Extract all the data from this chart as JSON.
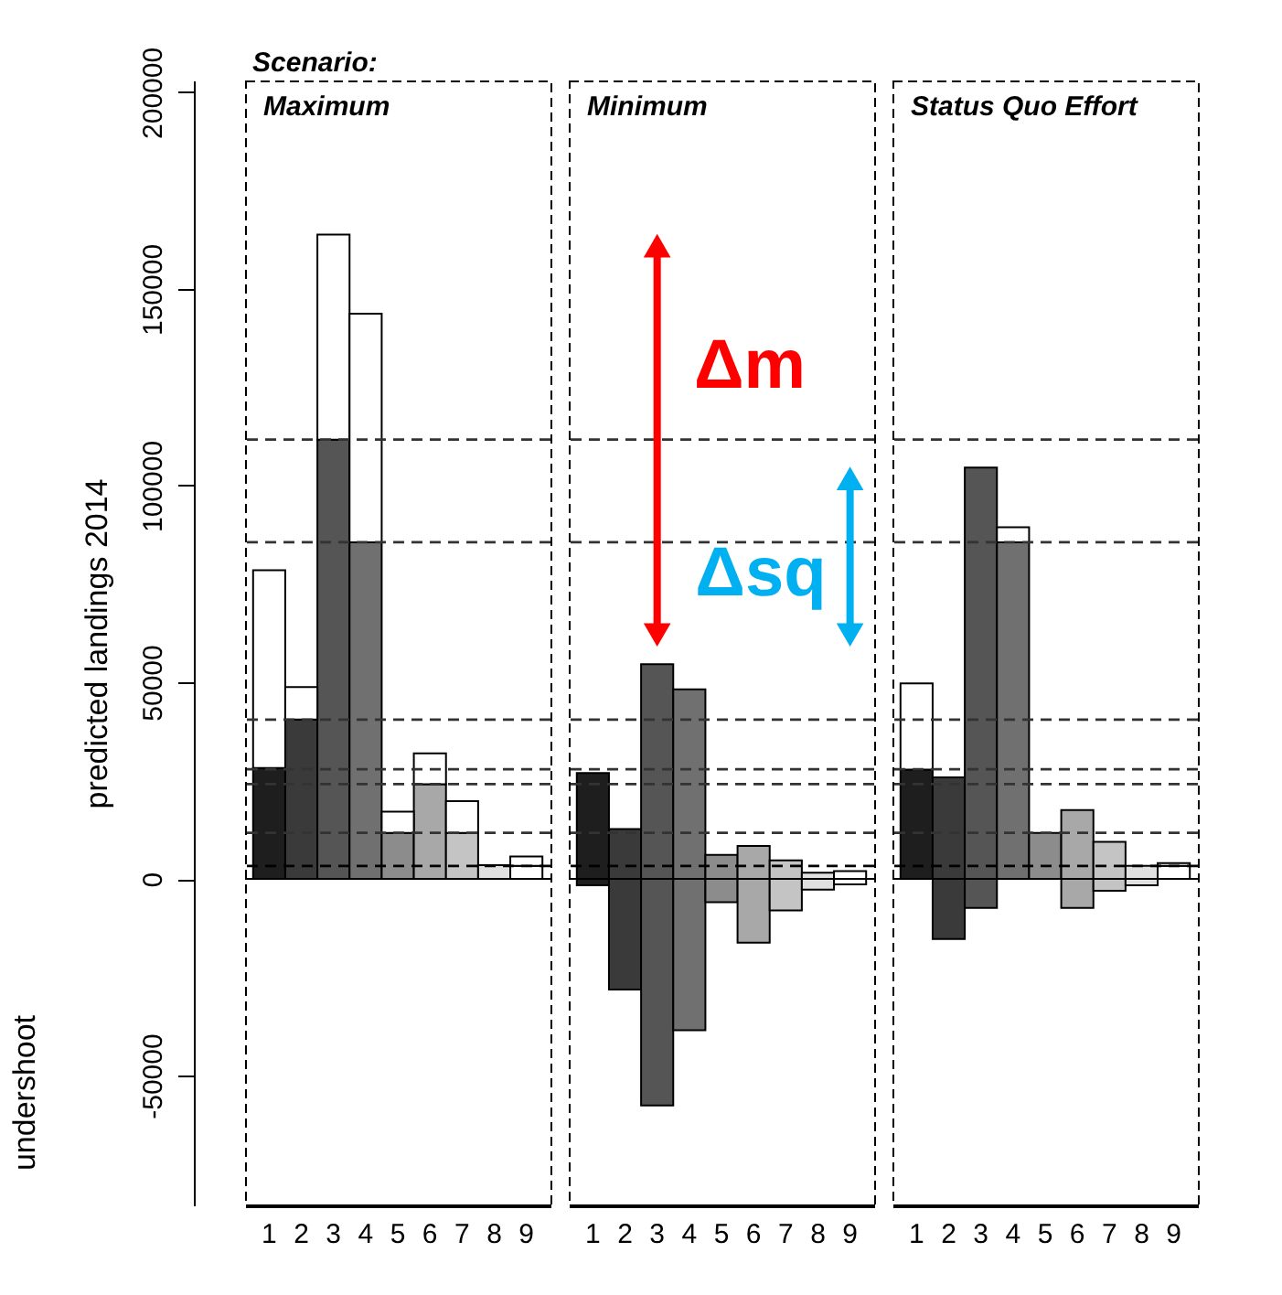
{
  "chart_data": [
    {
      "type": "bar",
      "title": "Maximum",
      "ylabel": "predicted landings 2014",
      "annotations": [
        "Scenario:",
        "undershoot"
      ],
      "categories": [
        "1",
        "2",
        "3",
        "4",
        "5",
        "6",
        "7",
        "8",
        "9"
      ],
      "ylim": [
        -83000,
        203000
      ],
      "yticks": [
        -50000,
        0,
        50000,
        100000,
        150000,
        200000
      ],
      "series": [
        {
          "colors": [
            "#1e1e1e",
            "#3a3a3a",
            "#555555",
            "#707070",
            "#8c8c8c",
            "#a8a8a8",
            "#c4c4c4",
            "#e0e0e0",
            "#ffffff"
          ],
          "base": [
            0,
            0,
            0,
            0,
            0,
            0,
            0,
            0,
            0
          ],
          "values": [
            28200,
            40500,
            111700,
            85600,
            11700,
            24100,
            11700,
            3500,
            3300
          ]
        },
        {
          "color": "#ffffff",
          "base": [
            28200,
            40500,
            111700,
            85600,
            11700,
            24100,
            11700,
            null,
            3300
          ],
          "values": [
            50300,
            8300,
            52100,
            58100,
            5400,
            7800,
            8100,
            null,
            2400
          ]
        }
      ],
      "ref_lines": [
        {
          "axis": "y",
          "value": 111700,
          "color": "#333333",
          "line_style": "dashed"
        },
        {
          "axis": "y",
          "value": 85600,
          "color": "#333333",
          "line_style": "dashed"
        },
        {
          "axis": "y",
          "value": 40500,
          "color": "#333333",
          "line_style": "dashed"
        },
        {
          "axis": "y",
          "value": 27900,
          "color": "#333333",
          "line_style": "dashed"
        },
        {
          "axis": "y",
          "value": 24100,
          "color": "#333333",
          "line_style": "dashed"
        },
        {
          "axis": "y",
          "value": 11700,
          "color": "#333333",
          "line_style": "dashed"
        },
        {
          "axis": "y",
          "value": 3300,
          "color": "#000000",
          "line_style": "dashed"
        },
        {
          "axis": "y",
          "value": 0,
          "color": "#000000",
          "line_style": "solid"
        }
      ]
    },
    {
      "type": "bar",
      "title": "Minimum",
      "tick_labels": "x",
      "annotations": [
        "Δm",
        "Δsq"
      ],
      "categories": [
        "1",
        "2",
        "3",
        "4",
        "5",
        "6",
        "7",
        "8",
        "9"
      ],
      "ylim": [
        -83000,
        203000
      ],
      "series": [
        {
          "colors": [
            "#1e1e1e",
            "#3a3a3a",
            "#555555",
            "#707070",
            "#8c8c8c",
            "#a8a8a8",
            "#c4c4c4",
            "#e0e0e0",
            "#ffffff"
          ],
          "base": [
            -1600,
            -28100,
            -57600,
            -38500,
            -5900,
            -16200,
            -8000,
            -2700,
            -1400
          ],
          "values": [
            28500,
            40800,
            112200,
            86700,
            12000,
            24600,
            12700,
            4300,
            3400
          ]
        }
      ],
      "ref_lines": [
        {
          "axis": "y",
          "value": 111700,
          "color": "#333333",
          "line_style": "dashed"
        },
        {
          "axis": "y",
          "value": 85600,
          "color": "#333333",
          "line_style": "dashed"
        },
        {
          "axis": "y",
          "value": 40500,
          "color": "#333333",
          "line_style": "dashed"
        },
        {
          "axis": "y",
          "value": 27900,
          "color": "#333333",
          "line_style": "dashed"
        },
        {
          "axis": "y",
          "value": 24100,
          "color": "#333333",
          "line_style": "dashed"
        },
        {
          "axis": "y",
          "value": 11700,
          "color": "#333333",
          "line_style": "dashed"
        },
        {
          "axis": "y",
          "value": 3300,
          "color": "#000000",
          "line_style": "dashed"
        },
        {
          "axis": "y",
          "value": 0,
          "color": "#000000",
          "line_style": "solid"
        }
      ]
    },
    {
      "type": "bar",
      "title": "Status Quo Effort",
      "tick_labels": "x",
      "categories": [
        "1",
        "2",
        "3",
        "4",
        "5",
        "6",
        "7",
        "8",
        "9"
      ],
      "ylim": [
        -83000,
        203000
      ],
      "series": [
        {
          "colors": [
            "#1e1e1e",
            "#3a3a3a",
            "#555555",
            "#707070",
            "#8c8c8c",
            "#a8a8a8",
            "#c4c4c4",
            "#e0e0e0",
            "#ffffff"
          ],
          "base": [
            0,
            -15300,
            -7400,
            0,
            0,
            -7400,
            -3000,
            -1600,
            0
          ],
          "values": [
            27800,
            41100,
            112000,
            85600,
            11700,
            24900,
            12400,
            4900,
            3300
          ]
        },
        {
          "color": "#ffffff",
          "base": [
            27800,
            null,
            null,
            85600,
            null,
            null,
            null,
            null,
            3300
          ],
          "values": [
            21900,
            null,
            null,
            3800,
            null,
            null,
            null,
            null,
            700
          ]
        }
      ],
      "ref_lines": [
        {
          "axis": "y",
          "value": 111700,
          "color": "#333333",
          "line_style": "dashed"
        },
        {
          "axis": "y",
          "value": 85600,
          "color": "#333333",
          "line_style": "dashed"
        },
        {
          "axis": "y",
          "value": 40500,
          "color": "#333333",
          "line_style": "dashed"
        },
        {
          "axis": "y",
          "value": 27900,
          "color": "#333333",
          "line_style": "dashed"
        },
        {
          "axis": "y",
          "value": 24100,
          "color": "#333333",
          "line_style": "dashed"
        },
        {
          "axis": "y",
          "value": 11700,
          "color": "#333333",
          "line_style": "dashed"
        },
        {
          "axis": "y",
          "value": 3300,
          "color": "#000000",
          "line_style": "dashed"
        },
        {
          "axis": "y",
          "value": 0,
          "color": "#000000",
          "line_style": "solid"
        }
      ]
    }
  ]
}
